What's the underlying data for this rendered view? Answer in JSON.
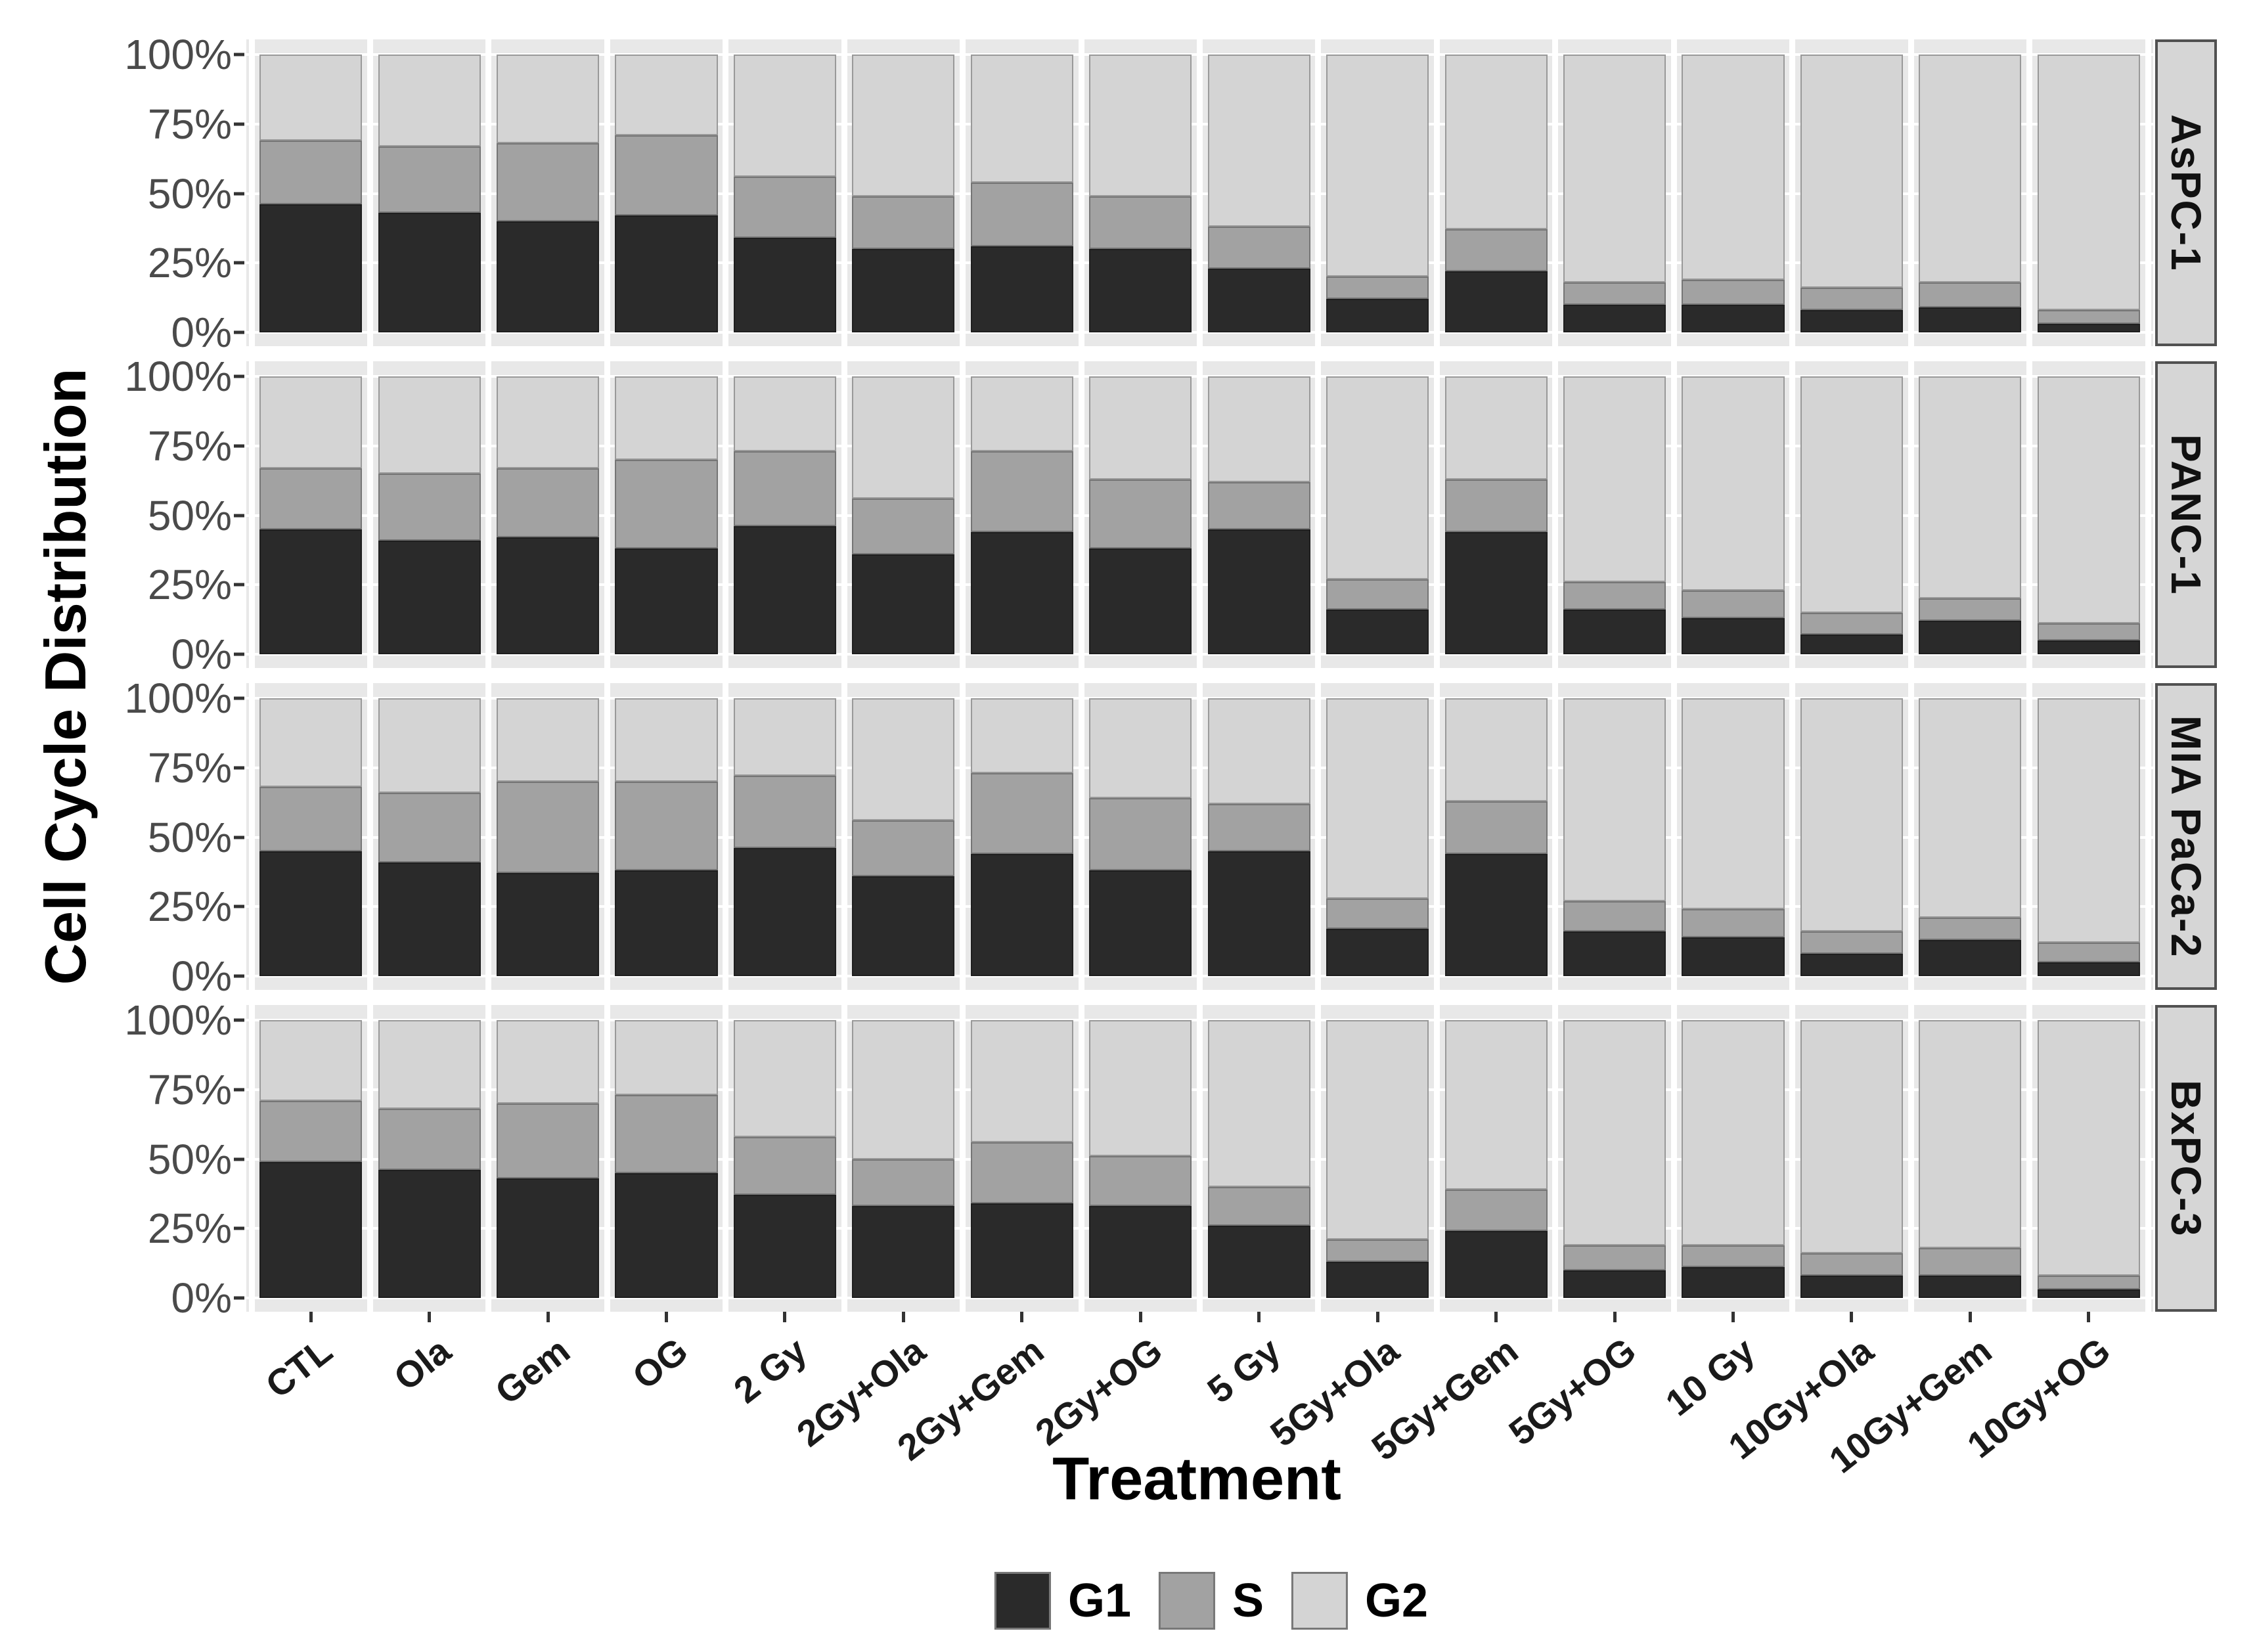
{
  "chart_data": {
    "type": "bar",
    "stacked": true,
    "orientation": "vertical",
    "xlabel": "Treatment",
    "ylabel": "Cell Cycle Distribution",
    "ylim": [
      0,
      100
    ],
    "y_ticks": [
      "100%",
      "75%",
      "50%",
      "25%",
      "0%"
    ],
    "grid": true,
    "legend_position": "bottom",
    "legend_entries": [
      "G1",
      "S",
      "G2"
    ],
    "categories": [
      "CTL",
      "Ola",
      "Gem",
      "OG",
      "2 Gy",
      "2Gy+Ola",
      "2Gy+Gem",
      "2Gy+OG",
      "5 Gy",
      "5Gy+Ola",
      "5Gy+Gem",
      "5Gy+OG",
      "10 Gy",
      "10Gy+Ola",
      "10Gy+Gem",
      "10Gy+OG"
    ],
    "facets": [
      {
        "label": "AsPC-1",
        "series": [
          {
            "name": "G1",
            "color": "#2a2a2a",
            "values": [
              46,
              43,
              40,
              42,
              34,
              30,
              31,
              30,
              23,
              12,
              22,
              10,
              10,
              8,
              9,
              3
            ]
          },
          {
            "name": "S",
            "color": "#a2a2a2",
            "values": [
              23,
              24,
              28,
              29,
              22,
              19,
              23,
              19,
              15,
              8,
              15,
              8,
              9,
              8,
              9,
              5
            ]
          },
          {
            "name": "G2",
            "color": "#d4d4d4",
            "values": [
              31,
              33,
              32,
              29,
              44,
              51,
              46,
              51,
              62,
              80,
              63,
              82,
              81,
              84,
              82,
              92
            ]
          }
        ]
      },
      {
        "label": "PANC-1",
        "series": [
          {
            "name": "G1",
            "color": "#2a2a2a",
            "values": [
              45,
              41,
              42,
              38,
              46,
              36,
              44,
              38,
              45,
              16,
              44,
              16,
              13,
              7,
              12,
              5
            ]
          },
          {
            "name": "S",
            "color": "#a2a2a2",
            "values": [
              22,
              24,
              25,
              32,
              27,
              20,
              29,
              25,
              17,
              11,
              19,
              10,
              10,
              8,
              8,
              6
            ]
          },
          {
            "name": "G2",
            "color": "#d4d4d4",
            "values": [
              33,
              35,
              33,
              30,
              27,
              44,
              27,
              37,
              38,
              73,
              37,
              74,
              77,
              85,
              80,
              89
            ]
          }
        ]
      },
      {
        "label": "MIA PaCa-2",
        "series": [
          {
            "name": "G1",
            "color": "#2a2a2a",
            "values": [
              45,
              41,
              37,
              38,
              46,
              36,
              44,
              38,
              45,
              17,
              44,
              16,
              14,
              8,
              13,
              5
            ]
          },
          {
            "name": "S",
            "color": "#a2a2a2",
            "values": [
              23,
              25,
              33,
              32,
              26,
              20,
              29,
              26,
              17,
              11,
              19,
              11,
              10,
              8,
              8,
              7
            ]
          },
          {
            "name": "G2",
            "color": "#d4d4d4",
            "values": [
              32,
              34,
              30,
              30,
              28,
              44,
              27,
              36,
              38,
              72,
              37,
              73,
              76,
              84,
              79,
              88
            ]
          }
        ]
      },
      {
        "label": "BxPC-3",
        "series": [
          {
            "name": "G1",
            "color": "#2a2a2a",
            "values": [
              49,
              46,
              43,
              45,
              37,
              33,
              34,
              33,
              26,
              13,
              24,
              10,
              11,
              8,
              8,
              3
            ]
          },
          {
            "name": "S",
            "color": "#a2a2a2",
            "values": [
              22,
              22,
              27,
              28,
              21,
              17,
              22,
              18,
              14,
              8,
              15,
              9,
              8,
              8,
              10,
              5
            ]
          },
          {
            "name": "G2",
            "color": "#d4d4d4",
            "values": [
              29,
              32,
              30,
              27,
              42,
              50,
              44,
              49,
              60,
              79,
              61,
              81,
              81,
              84,
              82,
              92
            ]
          }
        ]
      }
    ]
  },
  "colors": {
    "g1": "#2a2a2a",
    "s": "#a2a2a2",
    "g2": "#d4d4d4",
    "panel_background": "#e8e8e8",
    "gridline": "#ffffff",
    "facet_strip_background": "#d6d6d6",
    "facet_strip_border": "#515151",
    "axis_text": "#4a4a4a"
  }
}
